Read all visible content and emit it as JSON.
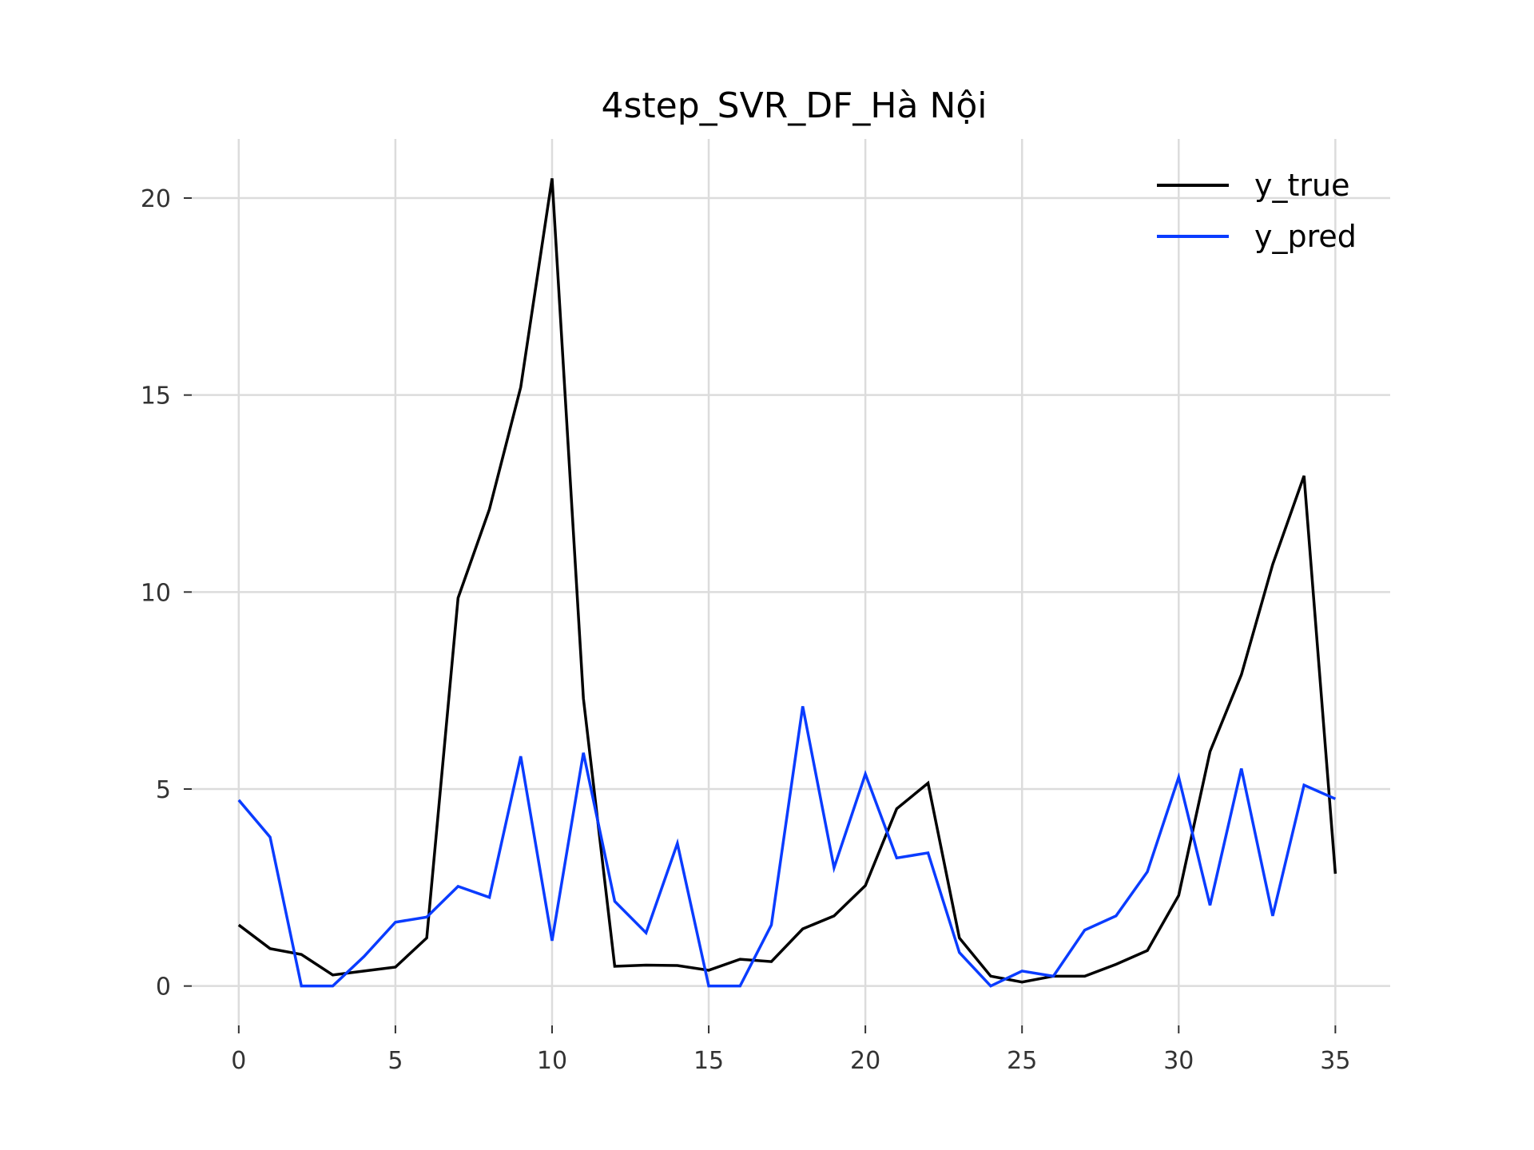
{
  "chart_data": {
    "type": "line",
    "title": "4step_SVR_DF_Hà Nội",
    "xlabel": "",
    "ylabel": "",
    "xlim": [
      -1.5,
      36.75
    ],
    "ylim": [
      -1.0,
      21.5
    ],
    "x_ticks": [
      0,
      5,
      10,
      15,
      20,
      25,
      30,
      35
    ],
    "x_tick_labels": [
      "0",
      "5",
      "10",
      "15",
      "20",
      "25",
      "30",
      "35"
    ],
    "y_ticks": [
      0,
      5,
      10,
      15,
      20
    ],
    "y_tick_labels": [
      "0",
      "5",
      "10",
      "15",
      "20"
    ],
    "grid": true,
    "legend_position": "top-right",
    "x": [
      0,
      1,
      2,
      3,
      4,
      5,
      6,
      7,
      8,
      9,
      10,
      11,
      12,
      13,
      14,
      15,
      16,
      17,
      18,
      19,
      20,
      21,
      22,
      23,
      24,
      25,
      26,
      27,
      28,
      29,
      30,
      31,
      32,
      33,
      34,
      35
    ],
    "series": [
      {
        "name": "y_true",
        "color": "#000000",
        "values": [
          1.55,
          0.95,
          0.8,
          0.28,
          0.38,
          0.48,
          1.22,
          9.85,
          12.1,
          15.2,
          20.5,
          7.3,
          0.5,
          0.53,
          0.52,
          0.4,
          0.68,
          0.62,
          1.45,
          1.78,
          2.55,
          4.5,
          5.15,
          1.22,
          0.25,
          0.1,
          0.25,
          0.25,
          0.55,
          0.9,
          2.3,
          5.95,
          7.9,
          10.7,
          12.95,
          2.85
        ]
      },
      {
        "name": "y_pred",
        "color": "#0a3cff",
        "values": [
          4.72,
          3.78,
          0.0,
          0.0,
          0.75,
          1.62,
          1.75,
          2.53,
          2.25,
          5.83,
          1.15,
          5.92,
          2.15,
          1.35,
          3.62,
          0.0,
          0.0,
          1.55,
          7.1,
          3.0,
          5.38,
          3.25,
          3.38,
          0.85,
          0.0,
          0.38,
          0.25,
          1.42,
          1.78,
          2.9,
          5.3,
          2.05,
          5.52,
          1.78,
          5.1,
          4.75
        ]
      }
    ]
  }
}
